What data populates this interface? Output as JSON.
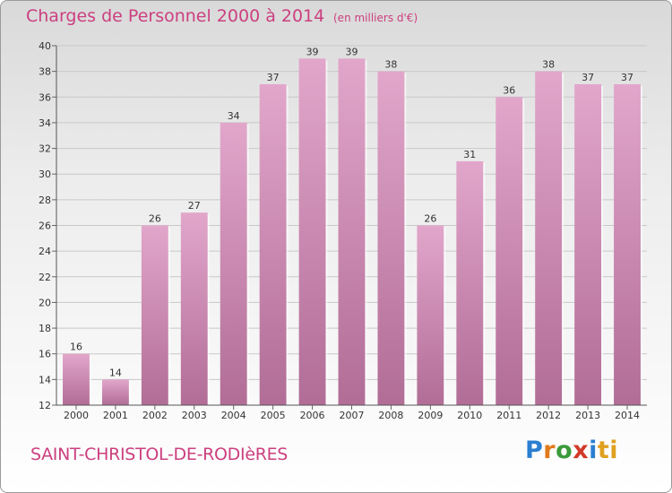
{
  "title": "Charges de Personnel 2000 à 2014",
  "subtitle": "(en milliers d'€)",
  "commune": "SAINT-CHRISTOL-DE-RODIèRES",
  "logo": [
    "P",
    "r",
    "o",
    "x",
    "i",
    "ti"
  ],
  "colors": {
    "accent": "#cc3f7f",
    "bar_top": "#e2a6cb",
    "bar_bottom": "#b16d96",
    "grid": "#c8c8c8"
  },
  "chart_data": {
    "type": "bar",
    "categories": [
      "2000",
      "2001",
      "2002",
      "2003",
      "2004",
      "2005",
      "2006",
      "2007",
      "2008",
      "2009",
      "2010",
      "2011",
      "2012",
      "2013",
      "2014"
    ],
    "values": [
      16,
      14,
      26,
      27,
      34,
      37,
      39,
      39,
      38,
      26,
      31,
      36,
      38,
      37,
      37
    ],
    "ylim": [
      12,
      40
    ],
    "yticks": [
      12,
      14,
      16,
      18,
      20,
      22,
      24,
      26,
      28,
      30,
      32,
      34,
      36,
      38,
      40
    ],
    "grid": true,
    "data_labels": true
  }
}
